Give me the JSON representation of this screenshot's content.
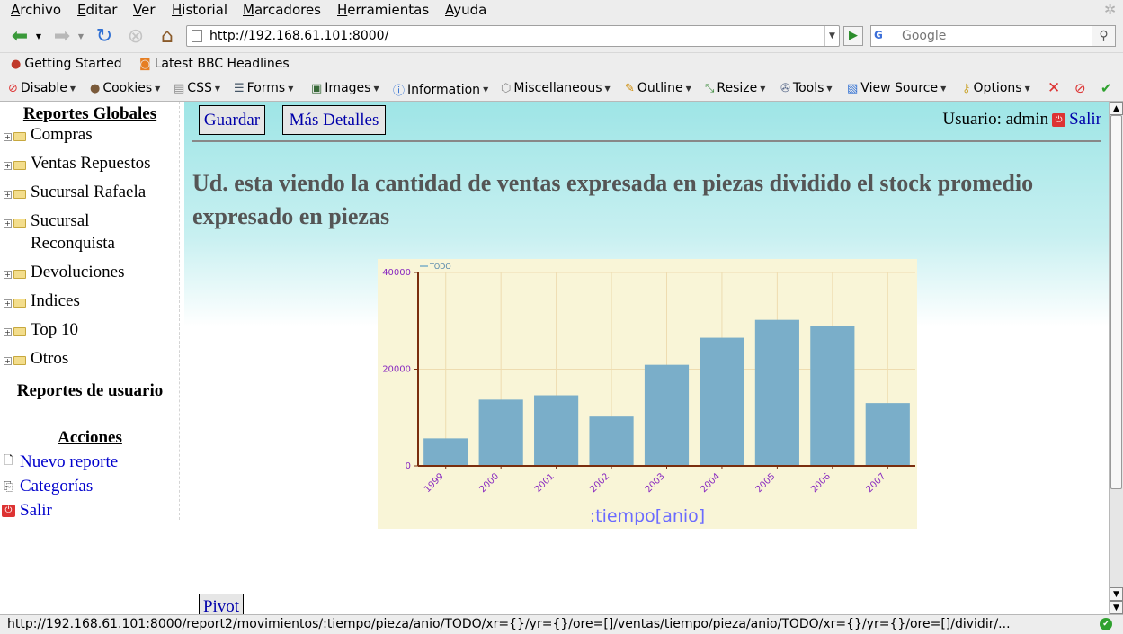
{
  "menubar": {
    "items": [
      "Archivo",
      "Editar",
      "Ver",
      "Historial",
      "Marcadores",
      "Herramientas",
      "Ayuda"
    ]
  },
  "navbar": {
    "url": "http://192.168.61.101:8000/",
    "search_placeholder": "Google",
    "search_engine": "G"
  },
  "bookmarks": {
    "items": [
      {
        "label": "Getting Started",
        "icon": "firefox-icon"
      },
      {
        "label": "Latest BBC Headlines",
        "icon": "rss-icon"
      }
    ]
  },
  "devbar": {
    "items": [
      "Disable",
      "Cookies",
      "CSS",
      "Forms",
      "Images",
      "Information",
      "Miscellaneous",
      "Outline",
      "Resize",
      "Tools",
      "View Source",
      "Options"
    ]
  },
  "sidebar": {
    "global_heading": "Reportes Globales",
    "tree": [
      {
        "label": "Compras"
      },
      {
        "label": "Ventas Repuestos"
      },
      {
        "label": "Sucursal Rafaela"
      },
      {
        "label": "Sucursal Reconquista"
      },
      {
        "label": "Devoluciones"
      },
      {
        "label": "Indices"
      },
      {
        "label": "Top 10"
      },
      {
        "label": "Otros"
      }
    ],
    "user_heading": "Reportes de usuario",
    "actions_heading": "Acciones",
    "actions": [
      {
        "label": "Nuevo reporte",
        "icon": "document-icon"
      },
      {
        "label": "Categorías",
        "icon": "categories-icon"
      },
      {
        "label": "Salir",
        "icon": "power-icon"
      }
    ]
  },
  "main": {
    "save_label": "Guardar",
    "details_label": "Más Detalles",
    "user_label": "Usuario: admin",
    "logout_label": "Salir",
    "description": "Ud. esta viendo la cantidad de ventas expresada en piezas dividido el stock promedio expresado en piezas",
    "pivot_label": "Pivot"
  },
  "status": {
    "text": "http://192.168.61.101:8000/report2/movimientos/:tiempo/pieza/anio/TODO/xr={}/yr={}/ore=[]/ventas/tiempo/pieza/anio/TODO/xr={}/yr={}/ore=[]/dividir/..."
  },
  "colors": {
    "bar": "#7aaec9",
    "chart_bg": "#f9f5d7",
    "axis": "#7a2e0e",
    "tick_text": "#8a2bc0",
    "xlabel": "#6b6bff"
  },
  "chart_data": {
    "type": "bar",
    "categories": [
      "1999",
      "2000",
      "2001",
      "2002",
      "2003",
      "2004",
      "2005",
      "2006",
      "2007"
    ],
    "series": [
      {
        "name": "TODO",
        "values": [
          5700,
          13700,
          14600,
          10200,
          20900,
          26500,
          30200,
          29000,
          13000
        ]
      }
    ],
    "xlabel": ":tiempo[anio]",
    "ylabel": "",
    "ylim": [
      0,
      40000
    ],
    "yticks": [
      0,
      20000,
      40000
    ],
    "grid": true,
    "legend": "top-left"
  }
}
